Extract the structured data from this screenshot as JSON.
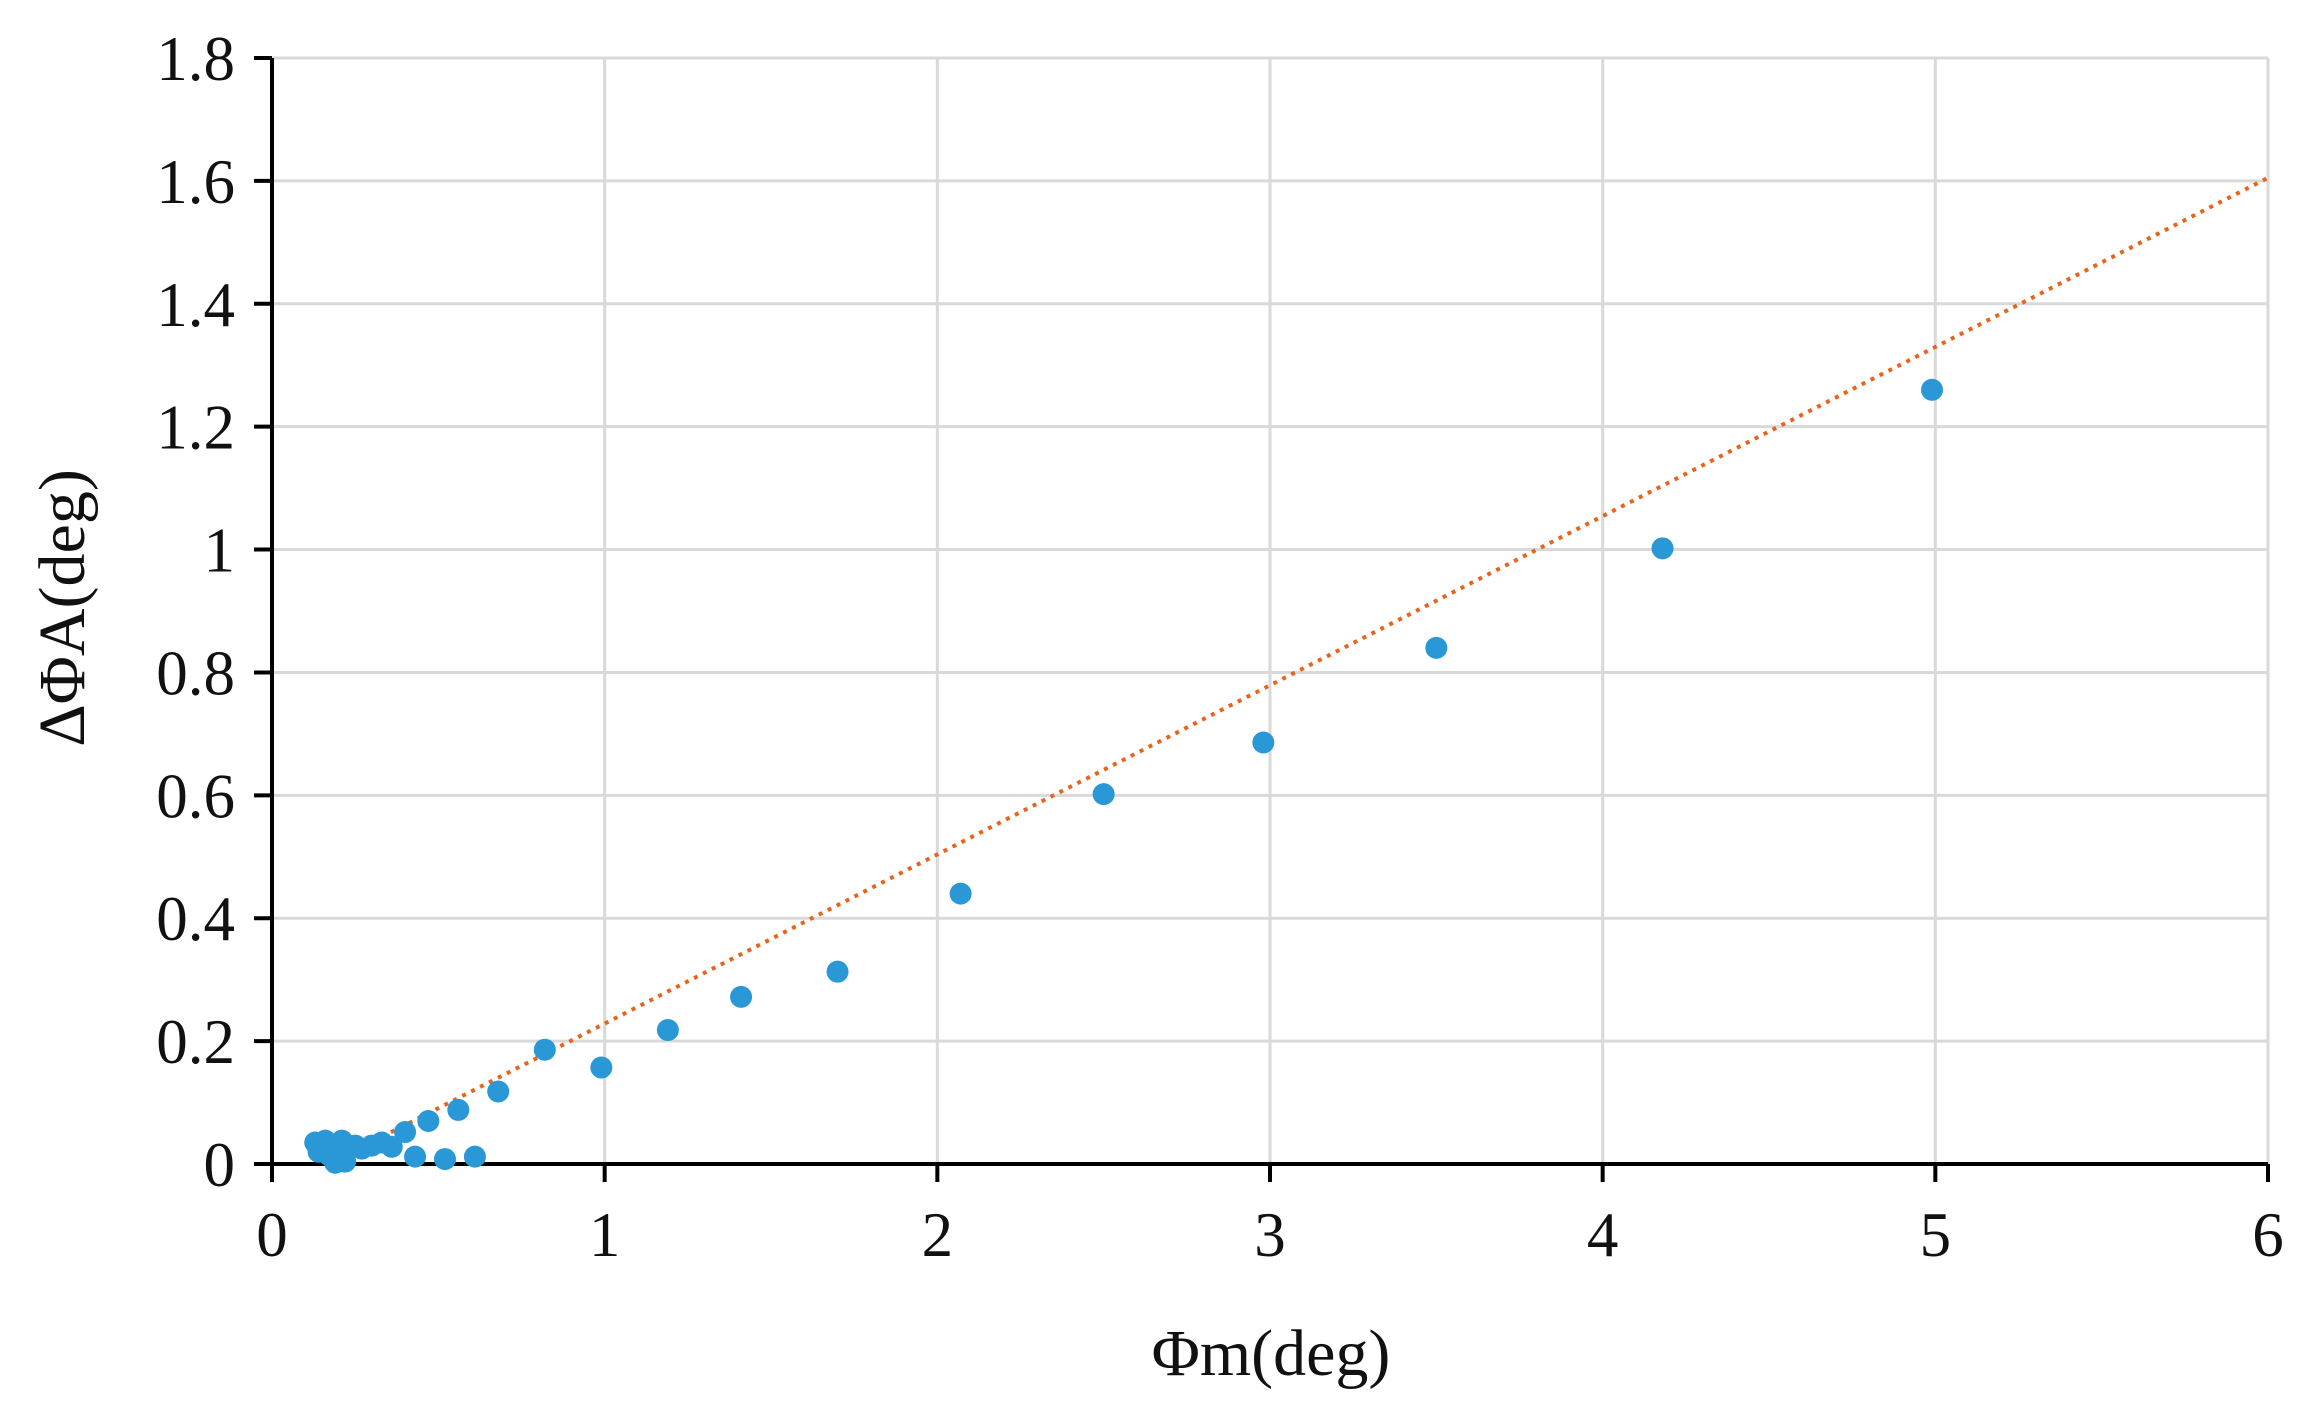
{
  "chart_data": {
    "type": "scatter",
    "title": "",
    "xlabel": "Φm(deg)",
    "ylabel": "ΔΦA(deg)",
    "xlim": [
      0,
      6
    ],
    "ylim": [
      0,
      1.8
    ],
    "xticks": [
      0,
      1,
      2,
      3,
      4,
      5,
      6
    ],
    "xtick_labels": [
      "0",
      "1",
      "2",
      "3",
      "4",
      "5",
      "6"
    ],
    "yticks": [
      0,
      0.2,
      0.4,
      0.6,
      0.8,
      1.0,
      1.2,
      1.4,
      1.6,
      1.8
    ],
    "ytick_labels": [
      "0",
      "0.2",
      "0.4",
      "0.6",
      "0.8",
      "1",
      "1.2",
      "1.4",
      "1.6",
      "1.8"
    ],
    "grid": true,
    "legend": "none",
    "series": [
      {
        "kind": "scatter",
        "color": "#2a97d6",
        "points": [
          [
            0.13,
            0.035
          ],
          [
            0.14,
            0.02
          ],
          [
            0.16,
            0.038
          ],
          [
            0.17,
            0.015
          ],
          [
            0.19,
            0.002
          ],
          [
            0.2,
            0.025
          ],
          [
            0.21,
            0.038
          ],
          [
            0.22,
            0.004
          ],
          [
            0.23,
            0.028
          ],
          [
            0.25,
            0.03
          ],
          [
            0.27,
            0.025
          ],
          [
            0.3,
            0.03
          ],
          [
            0.33,
            0.035
          ],
          [
            0.36,
            0.028
          ],
          [
            0.4,
            0.052
          ],
          [
            0.43,
            0.012
          ],
          [
            0.47,
            0.07
          ],
          [
            0.52,
            0.008
          ],
          [
            0.56,
            0.088
          ],
          [
            0.61,
            0.012
          ],
          [
            0.68,
            0.118
          ],
          [
            0.82,
            0.186
          ],
          [
            0.99,
            0.157
          ],
          [
            1.19,
            0.218
          ],
          [
            1.41,
            0.272
          ],
          [
            1.7,
            0.313
          ],
          [
            2.07,
            0.44
          ],
          [
            2.5,
            0.602
          ],
          [
            2.98,
            0.686
          ],
          [
            3.5,
            0.84
          ],
          [
            4.18,
            1.002
          ],
          [
            4.99,
            1.26
          ]
        ]
      },
      {
        "kind": "trendline",
        "style": "dotted",
        "color": "#e8641c",
        "points": [
          [
            0.17,
            0.0
          ],
          [
            6.0,
            1.605
          ]
        ]
      }
    ]
  }
}
